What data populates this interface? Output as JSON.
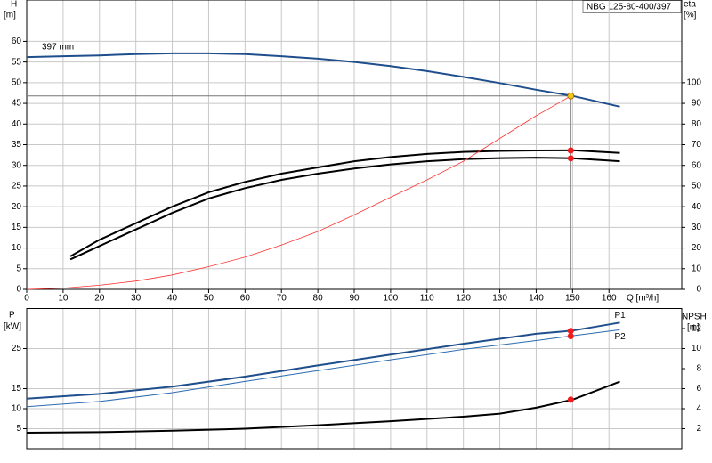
{
  "chart_data": [
    {
      "type": "line",
      "title": "NBG 125-80-400/397",
      "ylabel": "H",
      "yunit": "[m]",
      "y2label": "eta",
      "y2unit": "[%]",
      "xlabel": "Q [m³/h]",
      "xlim": [
        0,
        180
      ],
      "xticks": [
        0,
        10,
        20,
        30,
        40,
        50,
        60,
        70,
        80,
        90,
        100,
        110,
        120,
        130,
        140,
        150,
        160
      ],
      "ylim": [
        0,
        70
      ],
      "yticks": [
        0,
        5,
        10,
        15,
        20,
        25,
        30,
        35,
        40,
        45,
        50,
        55,
        60
      ],
      "y2lim": [
        0,
        140
      ],
      "y2ticks": [
        0,
        10,
        20,
        30,
        40,
        50,
        60,
        70,
        80,
        90,
        100
      ],
      "grid": true,
      "series": [
        {
          "name": "397 mm",
          "color": "#1f4e8c",
          "width": 2,
          "x": [
            0,
            10,
            20,
            30,
            40,
            50,
            60,
            70,
            80,
            90,
            100,
            110,
            120,
            130,
            140,
            150,
            163
          ],
          "values": [
            56.2,
            56.4,
            56.6,
            56.9,
            57.1,
            57.1,
            56.9,
            56.4,
            55.8,
            55.0,
            54.0,
            52.8,
            51.4,
            49.9,
            48.3,
            46.8,
            44.2
          ]
        },
        {
          "color": "#000000",
          "width": 2,
          "axis": "y2",
          "x": [
            12,
            20,
            30,
            40,
            50,
            60,
            70,
            80,
            90,
            100,
            110,
            120,
            130,
            140,
            150,
            163
          ],
          "values": [
            16,
            24,
            32,
            40,
            47,
            52,
            56,
            59,
            62,
            64,
            65.5,
            66.5,
            67,
            67.2,
            67.3,
            66
          ]
        },
        {
          "color": "#000000",
          "width": 2,
          "axis": "y2",
          "x": [
            12,
            20,
            30,
            40,
            50,
            60,
            70,
            80,
            90,
            100,
            110,
            120,
            130,
            140,
            150,
            163
          ],
          "values": [
            14.5,
            21,
            29,
            37,
            44,
            49,
            53,
            56,
            58.5,
            60.5,
            62,
            63,
            63.5,
            63.7,
            63.4,
            62
          ]
        },
        {
          "color": "#ff3333",
          "width": 0.8,
          "x": [
            0,
            10,
            20,
            30,
            40,
            50,
            60,
            70,
            80,
            90,
            100,
            110,
            120,
            130,
            140,
            150
          ],
          "values": [
            0,
            0.3,
            1,
            2,
            3.5,
            5.5,
            7.8,
            10.7,
            14,
            18,
            22.3,
            26.5,
            31,
            36.5,
            42,
            47
          ]
        }
      ],
      "markers": [
        {
          "x": 149.5,
          "y": 46.8,
          "color": "#f5c518",
          "crosshair": true
        },
        {
          "x": 149.5,
          "y": 67.2,
          "axis": "y2",
          "color": "#ee1c1c"
        },
        {
          "x": 149.5,
          "y": 63.4,
          "axis": "y2",
          "color": "#ee1c1c"
        }
      ]
    },
    {
      "type": "line",
      "ylabel": "P",
      "yunit": "[kW]",
      "y2label": "NPSH",
      "y2unit": "[m]",
      "xlim": [
        0,
        180
      ],
      "ylim": [
        0,
        35
      ],
      "yticks": [
        5,
        10,
        15,
        25
      ],
      "y2lim": [
        0,
        14
      ],
      "y2ticks": [
        2,
        4,
        6,
        8,
        10,
        12
      ],
      "grid": true,
      "series": [
        {
          "name": "P1",
          "color": "#1f4e8c",
          "width": 2,
          "x": [
            0,
            20,
            40,
            60,
            80,
            100,
            120,
            140,
            150,
            163
          ],
          "values": [
            12.5,
            13.7,
            15.5,
            18,
            20.8,
            23.5,
            26.2,
            28.7,
            29.5,
            31.5
          ]
        },
        {
          "name": "P2",
          "color": "#2a6bb0",
          "width": 1,
          "x": [
            0,
            20,
            40,
            60,
            80,
            100,
            120,
            140,
            150,
            163
          ],
          "values": [
            10.5,
            11.8,
            14,
            16.8,
            19.5,
            22.2,
            24.8,
            27,
            28.2,
            29.7
          ]
        },
        {
          "color": "#000000",
          "width": 2,
          "axis": "y2",
          "x": [
            0,
            20,
            40,
            60,
            80,
            100,
            120,
            130,
            140,
            150,
            163
          ],
          "values": [
            1.6,
            1.65,
            1.8,
            2.0,
            2.35,
            2.75,
            3.2,
            3.5,
            4.1,
            4.9,
            6.7
          ]
        }
      ],
      "markers": [
        {
          "x": 149.5,
          "y": 29.4,
          "color": "#ee1c1c"
        },
        {
          "x": 149.5,
          "y": 28.1,
          "color": "#ee1c1c"
        },
        {
          "x": 149.5,
          "y": 4.9,
          "axis": "y2",
          "color": "#ee1c1c"
        }
      ]
    }
  ]
}
